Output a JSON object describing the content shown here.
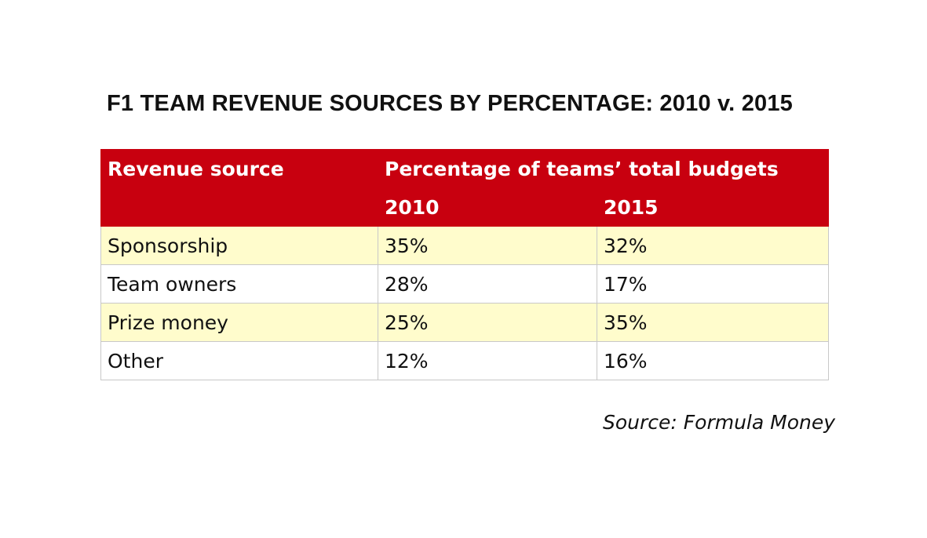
{
  "chart_data": {
    "type": "table",
    "title": "F1 TEAM REVENUE SOURCES BY PERCENTAGE: 2010 v. 2015",
    "headers": {
      "source": "Revenue source",
      "group": "Percentage of teams’ total budgets",
      "years": [
        "2010",
        "2015"
      ]
    },
    "rows": [
      {
        "label": "Sponsorship",
        "values": [
          "35%",
          "32%"
        ]
      },
      {
        "label": "Team owners",
        "values": [
          "28%",
          "17%"
        ]
      },
      {
        "label": "Prize money",
        "values": [
          "25%",
          "35%"
        ]
      },
      {
        "label": "Other",
        "values": [
          "12%",
          "16%"
        ]
      }
    ],
    "source": "Source: Formula Money"
  },
  "colors": {
    "header": "#c8000f",
    "stripe": "#fffccc"
  }
}
